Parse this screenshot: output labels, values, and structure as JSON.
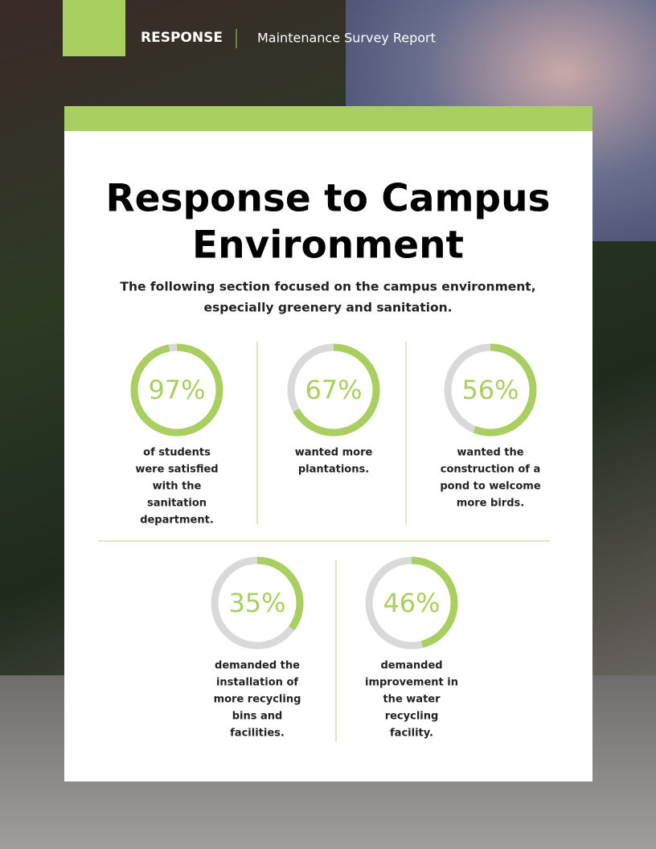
{
  "header": {
    "section": "RESPONSE",
    "report": "Maintenance Survey Report"
  },
  "title": [
    "Response to Campus",
    "Environment"
  ],
  "subtitle": [
    "The following section focused on the campus environment,",
    "especially greenery and sanitation."
  ],
  "stats": [
    {
      "value": 97,
      "label": "97%",
      "description": [
        "of students",
        "were satisfied",
        "with the",
        "sanitation",
        "department."
      ]
    },
    {
      "value": 67,
      "label": "67%",
      "description": [
        "wanted more",
        "plantations."
      ]
    },
    {
      "value": 56,
      "label": "56%",
      "description": [
        "wanted the",
        "construction of a",
        "pond to welcome",
        "more birds."
      ]
    },
    {
      "value": 35,
      "label": "35%",
      "description": [
        "demanded the",
        "installation of",
        "more recycling",
        "bins and",
        "facilities."
      ]
    },
    {
      "value": 46,
      "label": "46%",
      "description": [
        "demanded",
        "improvement in",
        "the water",
        "recycling",
        "facility."
      ]
    }
  ],
  "scale": {
    "max": 100
  }
}
